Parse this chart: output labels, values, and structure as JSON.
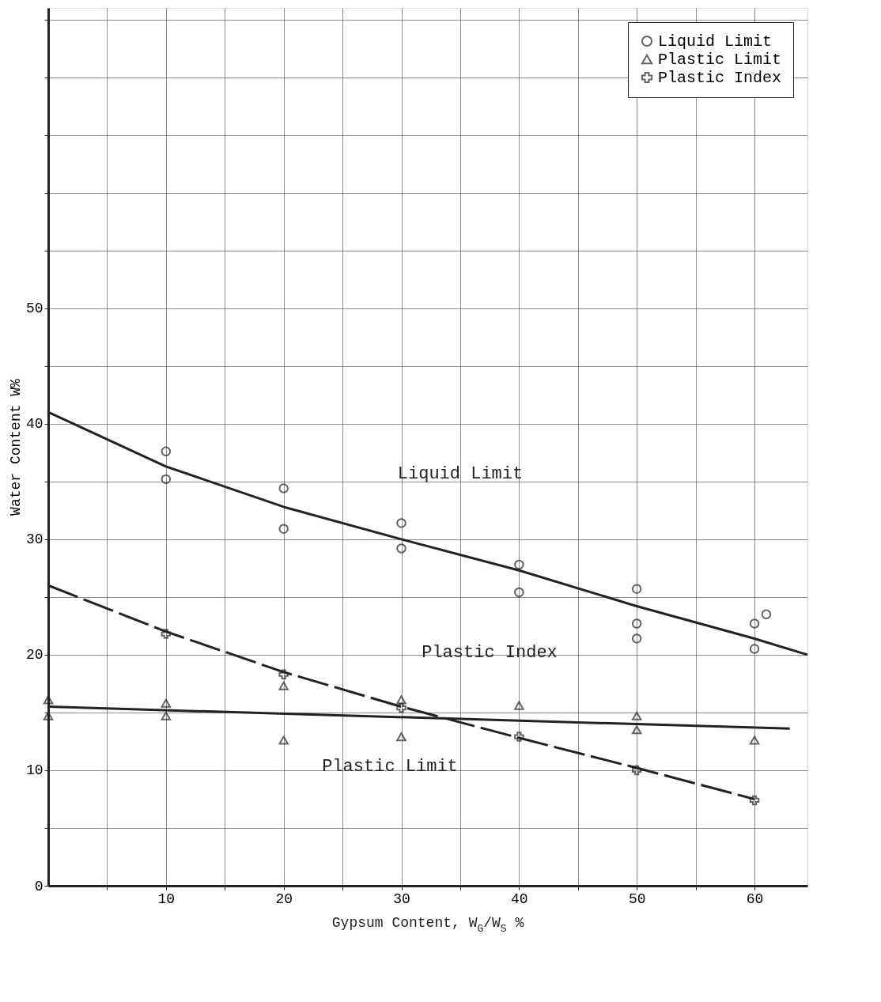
{
  "chart_data": {
    "type": "scatter",
    "xlabel": "Gypsum Content, W$_{G}$/W$_{S}$ %",
    "ylabel": "Water Content W%",
    "xlim": [
      0,
      64.5
    ],
    "ylim": [
      0,
      76
    ],
    "xticks": [
      {
        "value": 5,
        "label": null
      },
      10,
      {
        "value": 15,
        "label": null
      },
      20,
      {
        "value": 25,
        "label": null
      },
      30,
      {
        "value": 35,
        "label": null
      },
      40,
      {
        "value": 45,
        "label": null
      },
      50,
      {
        "value": 55,
        "label": null
      },
      60
    ],
    "yticks": [
      0,
      {
        "value": 5,
        "label": null
      },
      10,
      {
        "value": 15,
        "label": null
      },
      20,
      {
        "value": 25,
        "label": null
      },
      30,
      {
        "value": 35,
        "label": null
      },
      40,
      {
        "value": 45,
        "label": null
      },
      50,
      {
        "value": 55,
        "label": null
      },
      {
        "value": 60,
        "label": null
      },
      {
        "value": 65,
        "label": null
      },
      {
        "value": 70,
        "label": null
      },
      {
        "value": 75,
        "label": null
      }
    ],
    "grid": true,
    "legend": "top right",
    "series": [
      {
        "name": "Liquid Limit",
        "marker": "circle",
        "color": "#222222",
        "x": [
          10,
          10,
          20,
          20,
          30,
          30,
          40,
          40,
          50,
          50,
          50,
          60,
          60,
          61
        ],
        "values": [
          37.6,
          35.2,
          34.4,
          30.9,
          31.4,
          29.2,
          27.8,
          25.4,
          25.7,
          22.7,
          21.4,
          22.7,
          20.5,
          23.5
        ]
      },
      {
        "name": "Plastic Limit",
        "marker": "triangle",
        "color": "#222222",
        "x": [
          0,
          0,
          10,
          10,
          20,
          20,
          30,
          30,
          40,
          50,
          50,
          60
        ],
        "values": [
          16.1,
          14.7,
          15.8,
          14.7,
          17.3,
          12.6,
          16.1,
          12.9,
          15.6,
          14.7,
          13.5,
          12.6
        ]
      },
      {
        "name": "Plastic Index",
        "marker": "cross",
        "color": "#222222",
        "x": [
          10,
          20,
          30,
          40,
          50,
          60
        ],
        "values": [
          21.8,
          18.3,
          15.4,
          12.9,
          10.0,
          7.4
        ]
      },
      {
        "type": "line",
        "line_style": "solid",
        "color": "#222222",
        "x": [
          0,
          10,
          20,
          30,
          40,
          50,
          60,
          64.5
        ],
        "values": [
          41,
          36.3,
          32.8,
          30,
          27.3,
          24.2,
          21.4,
          20
        ]
      },
      {
        "type": "line",
        "line_style": "solid",
        "color": "#222222",
        "x": [
          0,
          63
        ],
        "values": [
          15.5,
          13.6
        ]
      },
      {
        "type": "line",
        "line_style": "dashed",
        "color": "#222222",
        "x": [
          0,
          10,
          20,
          30,
          40,
          50,
          60
        ],
        "values": [
          26,
          22,
          18.5,
          15.5,
          12.8,
          10.2,
          7.5
        ]
      }
    ],
    "annotations": [
      "Liquid Limit",
      "Plastic Index",
      "Plastic Limit"
    ]
  }
}
